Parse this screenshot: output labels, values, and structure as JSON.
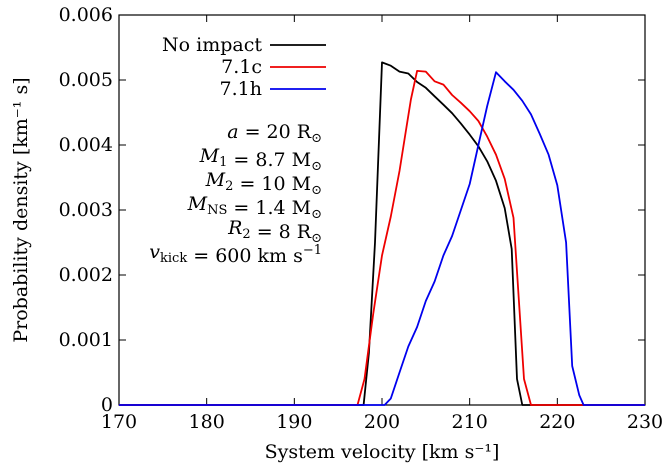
{
  "chart_data": {
    "type": "line",
    "title": "",
    "xlabel": "System velocity [km s⁻¹]",
    "ylabel": "Probability density [km⁻¹ s]",
    "xlim": [
      170,
      230
    ],
    "ylim": [
      0,
      0.006
    ],
    "x_ticks": [
      170,
      180,
      190,
      200,
      210,
      220,
      230
    ],
    "x_tick_labels": [
      "170",
      "180",
      "190",
      "200",
      "210",
      "220",
      "230"
    ],
    "y_ticks": [
      0,
      0.001,
      0.002,
      0.003,
      0.004,
      0.005,
      0.006
    ],
    "y_tick_labels": [
      "0",
      "0.001",
      "0.002",
      "0.003",
      "0.004",
      "0.005",
      "0.006"
    ],
    "grid": false,
    "legend_position": "top-left",
    "series": [
      {
        "name": "No impact",
        "color": "#000000",
        "x": [
          170,
          197.9,
          198.5,
          199.2,
          200.0,
          201.0,
          202.0,
          203.0,
          204.0,
          205.0,
          206.0,
          207.0,
          208.0,
          209.0,
          210.0,
          211.0,
          212.0,
          213.0,
          214.0,
          214.8,
          215.4,
          216.0,
          230
        ],
        "y": [
          0,
          0,
          0.0008,
          0.0025,
          0.00527,
          0.00522,
          0.00513,
          0.0051,
          0.00497,
          0.00488,
          0.00475,
          0.00462,
          0.00449,
          0.00433,
          0.00416,
          0.00398,
          0.00375,
          0.00345,
          0.00303,
          0.0024,
          0.0004,
          0,
          0
        ]
      },
      {
        "name": "7.1c",
        "color": "#ee0000",
        "x": [
          170,
          197.2,
          198.0,
          199.0,
          200.0,
          201.0,
          202.0,
          202.7,
          203.3,
          204.0,
          205.0,
          206.0,
          207.0,
          208.0,
          209.0,
          210.0,
          211.0,
          212.0,
          213.0,
          214.0,
          215.0,
          216.2,
          217.0,
          230
        ],
        "y": [
          0,
          0,
          0.0004,
          0.0014,
          0.0023,
          0.0029,
          0.0036,
          0.0042,
          0.0047,
          0.00514,
          0.00513,
          0.00498,
          0.00493,
          0.00477,
          0.00465,
          0.00452,
          0.00437,
          0.00413,
          0.00385,
          0.00348,
          0.00288,
          0.0004,
          0,
          0
        ]
      },
      {
        "name": "7.1h",
        "color": "#0000ee",
        "x": [
          170,
          200.3,
          201.0,
          202.0,
          203.0,
          204.0,
          205.0,
          206.0,
          207.0,
          208.0,
          209.0,
          210.0,
          211.0,
          212.0,
          213.0,
          214.0,
          215.0,
          216.0,
          217.0,
          218.0,
          219.0,
          220.0,
          221.0,
          221.7,
          222.5,
          223.0,
          230
        ],
        "y": [
          0,
          0,
          0.0001,
          0.0005,
          0.0009,
          0.0012,
          0.0016,
          0.0019,
          0.0023,
          0.0026,
          0.003,
          0.0034,
          0.004,
          0.0046,
          0.00512,
          0.00498,
          0.00485,
          0.00468,
          0.00447,
          0.00417,
          0.00385,
          0.00338,
          0.0025,
          0.0006,
          0.00015,
          0,
          0
        ]
      }
    ],
    "annotations": [
      {
        "lhs": "a",
        "rhs": " = 20 R",
        "sub": "⊙"
      },
      {
        "lhs": "M",
        "lsub": "1",
        "rhs": " = 8.7 M",
        "sub": "⊙"
      },
      {
        "lhs": "M",
        "lsub": "2",
        "rhs": " = 10 M",
        "sub": "⊙"
      },
      {
        "lhs": "M",
        "lsub": "NS",
        "rhs": " = 1.4 M",
        "sub": "⊙"
      },
      {
        "lhs": "R",
        "lsub": "2",
        "rhs": " = 8 R",
        "sub": "⊙"
      },
      {
        "lhs": "v",
        "lsub": "kick",
        "rhs": " = 600 km s",
        "sup": "−1"
      }
    ]
  }
}
